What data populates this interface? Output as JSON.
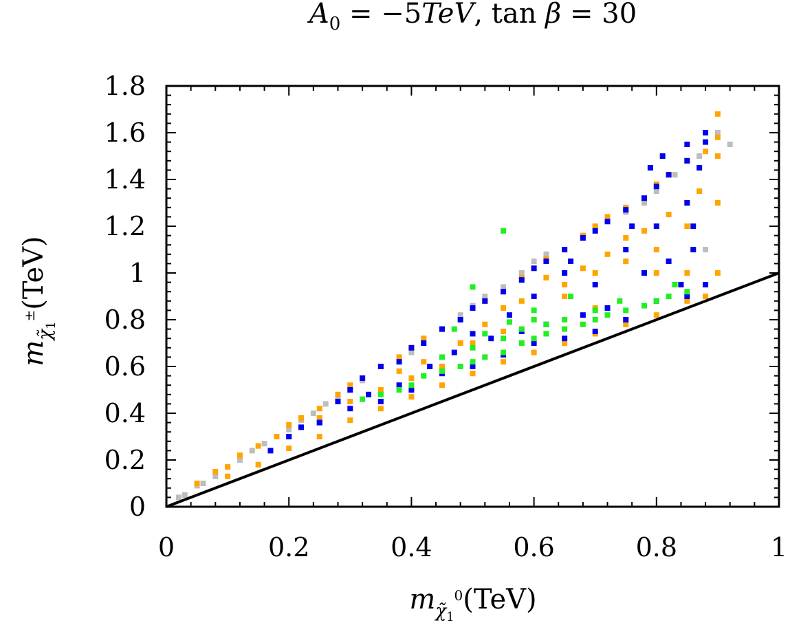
{
  "chart_data": {
    "type": "scatter",
    "title": {
      "parts": [
        "A",
        "0",
        " = −5",
        "TeV",
        ", tan ",
        "β",
        " = 30"
      ]
    },
    "xlabel": {
      "symbol": "m",
      "sub": "χ̃",
      "subsub": "1",
      "sup": "0",
      "unit": "(TeV)"
    },
    "ylabel": {
      "symbol": "m",
      "sub": "χ̃",
      "subsub": "1",
      "sup": "±",
      "unit": "(TeV)"
    },
    "xlim": [
      0,
      1
    ],
    "ylim": [
      0,
      1.8
    ],
    "x_ticks": [
      "0",
      "0.2",
      "0.4",
      "0.6",
      "0.8",
      "1"
    ],
    "y_ticks": [
      "0",
      "0.2",
      "0.4",
      "0.6",
      "0.8",
      "1",
      "1.2",
      "1.4",
      "1.6",
      "1.8"
    ],
    "x_tick_values": [
      0,
      0.2,
      0.4,
      0.6,
      0.8,
      1
    ],
    "y_tick_values": [
      0,
      0.2,
      0.4,
      0.6,
      0.8,
      1,
      1.2,
      1.4,
      1.6,
      1.8
    ],
    "grid": false,
    "reference_line": {
      "x": [
        0,
        1
      ],
      "y": [
        0,
        1
      ],
      "color": "#000000"
    },
    "series": [
      {
        "color": "#bdbdbd",
        "points": [
          [
            0.02,
            0.04
          ],
          [
            0.03,
            0.05
          ],
          [
            0.05,
            0.09
          ],
          [
            0.06,
            0.1
          ],
          [
            0.08,
            0.13
          ],
          [
            0.1,
            0.17
          ],
          [
            0.12,
            0.2
          ],
          [
            0.14,
            0.24
          ],
          [
            0.16,
            0.27
          ],
          [
            0.18,
            0.3
          ],
          [
            0.2,
            0.33
          ],
          [
            0.22,
            0.37
          ],
          [
            0.24,
            0.4
          ],
          [
            0.26,
            0.44
          ],
          [
            0.28,
            0.47
          ],
          [
            0.3,
            0.5
          ],
          [
            0.32,
            0.54
          ],
          [
            0.35,
            0.6
          ],
          [
            0.38,
            0.63
          ],
          [
            0.4,
            0.66
          ],
          [
            0.42,
            0.72
          ],
          [
            0.45,
            0.76
          ],
          [
            0.48,
            0.82
          ],
          [
            0.5,
            0.86
          ],
          [
            0.52,
            0.9
          ],
          [
            0.55,
            0.94
          ],
          [
            0.58,
            1.0
          ],
          [
            0.6,
            1.05
          ],
          [
            0.62,
            1.08
          ],
          [
            0.65,
            1.1
          ],
          [
            0.68,
            1.16
          ],
          [
            0.7,
            1.2
          ],
          [
            0.72,
            1.22
          ],
          [
            0.75,
            1.26
          ],
          [
            0.78,
            1.3
          ],
          [
            0.8,
            1.35
          ],
          [
            0.85,
            1.3
          ],
          [
            0.88,
            1.1
          ],
          [
            0.9,
            1.5
          ],
          [
            0.9,
            1.6
          ],
          [
            0.87,
            1.5
          ],
          [
            0.83,
            1.42
          ],
          [
            0.92,
            1.55
          ]
        ]
      },
      {
        "color": "#ffa500",
        "points": [
          [
            0.05,
            0.1
          ],
          [
            0.08,
            0.15
          ],
          [
            0.1,
            0.17
          ],
          [
            0.12,
            0.22
          ],
          [
            0.15,
            0.26
          ],
          [
            0.18,
            0.3
          ],
          [
            0.2,
            0.35
          ],
          [
            0.22,
            0.38
          ],
          [
            0.25,
            0.42
          ],
          [
            0.28,
            0.48
          ],
          [
            0.3,
            0.52
          ],
          [
            0.32,
            0.55
          ],
          [
            0.35,
            0.6
          ],
          [
            0.38,
            0.64
          ],
          [
            0.4,
            0.68
          ],
          [
            0.42,
            0.72
          ],
          [
            0.45,
            0.76
          ],
          [
            0.48,
            0.8
          ],
          [
            0.5,
            0.85
          ],
          [
            0.52,
            0.88
          ],
          [
            0.55,
            0.92
          ],
          [
            0.58,
            0.98
          ],
          [
            0.6,
            1.02
          ],
          [
            0.62,
            1.06
          ],
          [
            0.65,
            1.1
          ],
          [
            0.68,
            1.16
          ],
          [
            0.7,
            1.2
          ],
          [
            0.72,
            1.24
          ],
          [
            0.75,
            1.28
          ],
          [
            0.78,
            1.32
          ],
          [
            0.8,
            1.38
          ],
          [
            0.82,
            1.42
          ],
          [
            0.85,
            1.48
          ],
          [
            0.88,
            1.52
          ],
          [
            0.9,
            1.58
          ],
          [
            0.9,
            1.68
          ],
          [
            0.9,
            1.5
          ],
          [
            0.9,
            1.3
          ],
          [
            0.9,
            1.0
          ],
          [
            0.88,
            0.9
          ],
          [
            0.85,
            0.88
          ],
          [
            0.8,
            0.82
          ],
          [
            0.75,
            0.78
          ],
          [
            0.7,
            0.74
          ],
          [
            0.65,
            0.7
          ],
          [
            0.6,
            0.66
          ],
          [
            0.55,
            0.62
          ],
          [
            0.5,
            0.57
          ],
          [
            0.45,
            0.52
          ],
          [
            0.4,
            0.47
          ],
          [
            0.35,
            0.42
          ],
          [
            0.3,
            0.37
          ],
          [
            0.25,
            0.3
          ],
          [
            0.2,
            0.25
          ],
          [
            0.15,
            0.18
          ],
          [
            0.1,
            0.13
          ],
          [
            0.4,
            0.55
          ],
          [
            0.45,
            0.6
          ],
          [
            0.5,
            0.7
          ],
          [
            0.55,
            0.75
          ],
          [
            0.6,
            0.8
          ],
          [
            0.65,
            0.9
          ],
          [
            0.7,
            1.0
          ],
          [
            0.75,
            1.05
          ],
          [
            0.8,
            1.1
          ],
          [
            0.85,
            1.2
          ],
          [
            0.6,
            0.9
          ],
          [
            0.7,
            0.85
          ],
          [
            0.8,
            1.0
          ],
          [
            0.85,
            1.0
          ],
          [
            0.75,
            1.15
          ],
          [
            0.65,
            0.95
          ],
          [
            0.55,
            0.85
          ],
          [
            0.3,
            0.45
          ],
          [
            0.35,
            0.5
          ],
          [
            0.25,
            0.38
          ],
          [
            0.2,
            0.3
          ],
          [
            0.82,
            1.25
          ],
          [
            0.87,
            1.35
          ],
          [
            0.78,
            1.18
          ],
          [
            0.72,
            1.08
          ],
          [
            0.68,
            1.02
          ],
          [
            0.62,
            0.98
          ],
          [
            0.58,
            0.88
          ],
          [
            0.52,
            0.78
          ],
          [
            0.48,
            0.7
          ],
          [
            0.42,
            0.62
          ],
          [
            0.38,
            0.58
          ]
        ]
      },
      {
        "color": "#0000ee",
        "points": [
          [
            0.17,
            0.24
          ],
          [
            0.2,
            0.3
          ],
          [
            0.22,
            0.34
          ],
          [
            0.25,
            0.36
          ],
          [
            0.28,
            0.45
          ],
          [
            0.3,
            0.5
          ],
          [
            0.32,
            0.55
          ],
          [
            0.35,
            0.6
          ],
          [
            0.38,
            0.62
          ],
          [
            0.4,
            0.68
          ],
          [
            0.42,
            0.7
          ],
          [
            0.45,
            0.76
          ],
          [
            0.48,
            0.8
          ],
          [
            0.5,
            0.85
          ],
          [
            0.52,
            0.88
          ],
          [
            0.55,
            0.92
          ],
          [
            0.58,
            0.97
          ],
          [
            0.6,
            1.02
          ],
          [
            0.62,
            1.05
          ],
          [
            0.65,
            1.1
          ],
          [
            0.68,
            1.15
          ],
          [
            0.7,
            1.18
          ],
          [
            0.72,
            1.22
          ],
          [
            0.75,
            1.27
          ],
          [
            0.78,
            1.32
          ],
          [
            0.8,
            1.37
          ],
          [
            0.82,
            1.42
          ],
          [
            0.85,
            1.48
          ],
          [
            0.88,
            1.56
          ],
          [
            0.88,
            1.6
          ],
          [
            0.87,
            1.45
          ],
          [
            0.85,
            1.3
          ],
          [
            0.86,
            1.1
          ],
          [
            0.88,
            0.95
          ],
          [
            0.85,
            0.9
          ],
          [
            0.8,
            0.88
          ],
          [
            0.75,
            0.8
          ],
          [
            0.7,
            0.75
          ],
          [
            0.65,
            0.72
          ],
          [
            0.6,
            0.7
          ],
          [
            0.55,
            0.65
          ],
          [
            0.5,
            0.6
          ],
          [
            0.45,
            0.57
          ],
          [
            0.4,
            0.5
          ],
          [
            0.35,
            0.45
          ],
          [
            0.3,
            0.42
          ],
          [
            0.25,
            0.36
          ],
          [
            0.6,
            0.9
          ],
          [
            0.65,
            1.0
          ],
          [
            0.7,
            0.95
          ],
          [
            0.75,
            1.1
          ],
          [
            0.8,
            1.2
          ],
          [
            0.82,
            1.05
          ],
          [
            0.78,
            1.0
          ],
          [
            0.72,
            0.85
          ],
          [
            0.68,
            0.82
          ],
          [
            0.62,
            0.78
          ],
          [
            0.58,
            0.75
          ],
          [
            0.53,
            0.72
          ],
          [
            0.47,
            0.66
          ],
          [
            0.43,
            0.6
          ],
          [
            0.38,
            0.52
          ],
          [
            0.33,
            0.48
          ],
          [
            0.84,
            0.95
          ],
          [
            0.86,
            1.2
          ],
          [
            0.76,
            1.2
          ],
          [
            0.66,
            1.05
          ],
          [
            0.56,
            0.82
          ],
          [
            0.5,
            0.74
          ],
          [
            0.85,
            1.55
          ],
          [
            0.81,
            1.5
          ],
          [
            0.79,
            1.45
          ]
        ]
      },
      {
        "color": "#22ee22",
        "points": [
          [
            0.32,
            0.46
          ],
          [
            0.35,
            0.48
          ],
          [
            0.38,
            0.5
          ],
          [
            0.4,
            0.52
          ],
          [
            0.42,
            0.56
          ],
          [
            0.45,
            0.58
          ],
          [
            0.48,
            0.6
          ],
          [
            0.5,
            0.62
          ],
          [
            0.52,
            0.64
          ],
          [
            0.55,
            0.66
          ],
          [
            0.58,
            0.7
          ],
          [
            0.6,
            0.72
          ],
          [
            0.62,
            0.74
          ],
          [
            0.65,
            0.76
          ],
          [
            0.68,
            0.78
          ],
          [
            0.7,
            0.8
          ],
          [
            0.72,
            0.82
          ],
          [
            0.75,
            0.84
          ],
          [
            0.78,
            0.86
          ],
          [
            0.8,
            0.88
          ],
          [
            0.82,
            0.9
          ],
          [
            0.85,
            0.92
          ],
          [
            0.6,
            0.8
          ],
          [
            0.62,
            0.78
          ],
          [
            0.58,
            0.76
          ],
          [
            0.55,
            0.72
          ],
          [
            0.65,
            0.8
          ],
          [
            0.7,
            0.84
          ],
          [
            0.5,
            0.68
          ],
          [
            0.45,
            0.64
          ],
          [
            0.6,
            0.84
          ],
          [
            0.56,
            0.79
          ],
          [
            0.52,
            0.74
          ],
          [
            0.47,
            0.76
          ],
          [
            0.55,
            1.18
          ],
          [
            0.5,
            0.94
          ],
          [
            0.66,
            0.9
          ],
          [
            0.74,
            0.88
          ],
          [
            0.83,
            0.95
          ]
        ]
      }
    ]
  }
}
